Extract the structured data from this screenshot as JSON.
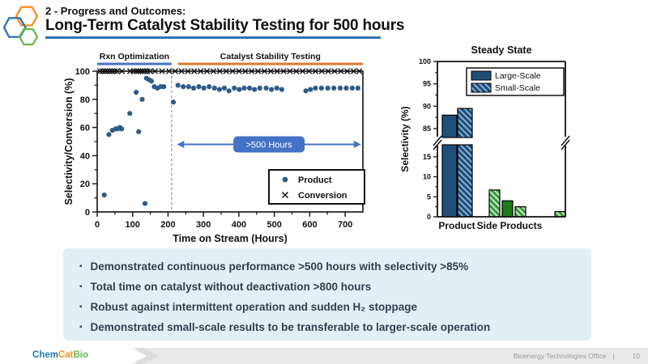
{
  "slide": {
    "kicker": "2 - Progress and Outcomes:",
    "title": "Long-Term Catalyst Stability Testing for 500 hours"
  },
  "colors": {
    "accent_blue": "#2E75B6",
    "region_blue": "#4472C4",
    "region_orange": "#E0782F",
    "product_dot_blue": "#2E5C8A",
    "bar_navy": "#1F4E79",
    "bar_navy_hatch_stripe": "#8FB9DC",
    "green_solid": "#1D7A1D",
    "green_hatch_base": "#3E9C3E",
    "bullet_box_bg": "#E2EFF7",
    "bullet_text": "#333F4F",
    "footer_bg": "#E9E9E9"
  },
  "chart_data": [
    {
      "type": "scatter",
      "title": "",
      "xlabel": "Time on Stream (Hours)",
      "ylabel": "Selectivity/Conversion (%)",
      "xlim": [
        0,
        750
      ],
      "ylim": [
        0,
        100
      ],
      "xticks": [
        0,
        100,
        200,
        300,
        400,
        500,
        600,
        700
      ],
      "yticks": [
        0,
        20,
        40,
        60,
        80,
        100
      ],
      "grid": false,
      "legend_position": "lower-right-inside",
      "regions": [
        {
          "label": "Rxn Optimization",
          "from": 0,
          "to": 210,
          "color": "#4472C4"
        },
        {
          "label": "Catalyst Stability Testing",
          "from": 228,
          "to": 750,
          "color": "#E0782F"
        }
      ],
      "divider_x": 210,
      "annotation": {
        "label": ">500 Hours",
        "from": 225,
        "to": 745,
        "y": 48,
        "color": "#4472C4"
      },
      "series": [
        {
          "name": "Product",
          "marker": "circle",
          "color": "#2E5C8A",
          "points": [
            [
              20,
              12
            ],
            [
              33,
              55
            ],
            [
              43,
              58
            ],
            [
              52,
              59
            ],
            [
              58,
              59
            ],
            [
              64,
              60
            ],
            [
              69,
              59
            ],
            [
              92,
              70
            ],
            [
              110,
              85
            ],
            [
              117,
              57
            ],
            [
              127,
              80
            ],
            [
              135,
              6
            ],
            [
              139,
              95
            ],
            [
              146,
              94
            ],
            [
              153,
              93
            ],
            [
              161,
              89
            ],
            [
              170,
              88
            ],
            [
              179,
              89
            ],
            [
              188,
              89
            ],
            [
              215,
              78
            ],
            [
              228,
              90
            ],
            [
              243,
              89
            ],
            [
              258,
              89
            ],
            [
              272,
              88
            ],
            [
              287,
              89
            ],
            [
              301,
              88
            ],
            [
              316,
              89
            ],
            [
              331,
              88
            ],
            [
              345,
              87
            ],
            [
              359,
              88
            ],
            [
              372,
              86
            ],
            [
              387,
              88
            ],
            [
              401,
              87
            ],
            [
              415,
              88
            ],
            [
              430,
              88
            ],
            [
              444,
              87
            ],
            [
              459,
              88
            ],
            [
              477,
              88
            ],
            [
              492,
              87
            ],
            [
              507,
              88
            ],
            [
              521,
              87
            ],
            [
              589,
              86
            ],
            [
              602,
              87
            ],
            [
              616,
              88
            ],
            [
              633,
              88
            ],
            [
              651,
              88
            ],
            [
              668,
              88
            ],
            [
              686,
              88
            ],
            [
              703,
              88
            ],
            [
              720,
              88
            ],
            [
              736,
              88
            ]
          ]
        },
        {
          "name": "Conversion",
          "marker": "x",
          "color": "#111111",
          "y_constant": 100,
          "x": [
            8,
            15,
            22,
            28,
            35,
            42,
            49,
            56,
            70,
            93,
            103,
            110,
            116,
            122,
            128,
            134,
            141,
            149,
            163,
            183,
            203,
            220,
            238,
            256,
            274,
            292,
            310,
            328,
            346,
            364,
            382,
            400,
            418,
            436,
            454,
            472,
            490,
            508,
            526,
            544,
            562,
            580,
            598,
            616,
            634,
            652,
            670,
            688,
            706,
            724,
            740
          ]
        }
      ]
    },
    {
      "type": "bar",
      "title": "Steady State",
      "ylabel": "Selectivity (%)",
      "categories": [
        "Product",
        "Side Products"
      ],
      "broken_axis": {
        "top_range": [
          83,
          100
        ],
        "top_ticks": [
          85,
          90,
          95,
          100
        ],
        "bottom_range": [
          0,
          18
        ],
        "bottom_ticks": [
          0,
          5,
          10,
          15
        ]
      },
      "legend": [
        {
          "label": "Large-Scale",
          "fill_style": "solid_navy"
        },
        {
          "label": "Small-Scale",
          "fill_style": "hatch_blue"
        }
      ],
      "legend_position": "upper-right-inside",
      "bars": [
        {
          "category": "Product",
          "series": "Large-Scale",
          "value": 88,
          "slot": "p1",
          "fill_style": "solid_navy",
          "color": "#1F4E79"
        },
        {
          "category": "Product",
          "series": "Small-Scale",
          "value": 89.5,
          "slot": "p2",
          "fill_style": "hatch_blue",
          "color": "#1F4E79"
        },
        {
          "category": "Side Products",
          "series": "Small-Scale",
          "value": 6.7,
          "slot": "s1",
          "fill_style": "hatch_green",
          "color": "#3E9C3E"
        },
        {
          "category": "Side Products",
          "series": "Large-Scale",
          "value": 4.0,
          "slot": "s2",
          "fill_style": "solid_green",
          "color": "#1D7A1D"
        },
        {
          "category": "Side Products",
          "series": "Small-Scale",
          "value": 2.5,
          "slot": "s3",
          "fill_style": "hatch_green",
          "color": "#3E9C3E"
        },
        {
          "category": "Side Products",
          "series": "Small-Scale",
          "value": 1.3,
          "slot": "s4",
          "fill_style": "hatch_green",
          "color": "#3E9C3E"
        }
      ]
    }
  ],
  "bullets": {
    "icon": "▪",
    "items": [
      "Demonstrated continuous performance >500 hours with selectivity >85%",
      "Total time on catalyst without deactivation >800 hours",
      "Robust against intermittent operation and sudden H₂ stoppage",
      "Demonstrated small-scale results to be transferable to larger-scale operation"
    ]
  },
  "footer": {
    "logo": {
      "chem": "Chem",
      "cat": "Cat",
      "bio": "Bio"
    },
    "org": "Bioenergy Technologies Office",
    "divider": "|",
    "page": "10"
  }
}
